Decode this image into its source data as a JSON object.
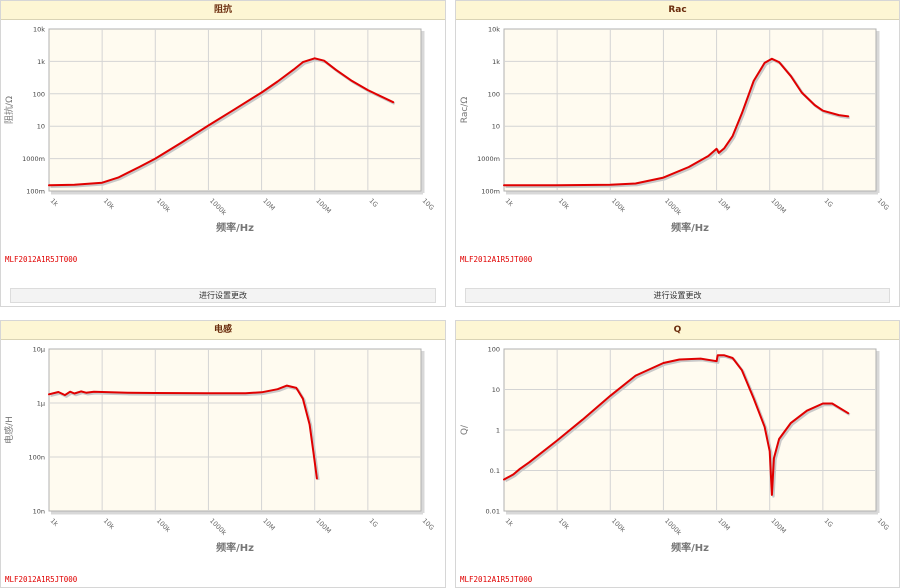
{
  "button_label": "进行设置更改",
  "part_number": "MLF2012A1R5JT000",
  "panels": [
    {
      "title": "阻抗"
    },
    {
      "title": "Rac"
    },
    {
      "title": "电感"
    },
    {
      "title": "Q"
    }
  ],
  "chart_data": [
    {
      "type": "line",
      "title": "阻抗",
      "xlabel": "频率/Hz",
      "ylabel": "阻抗/Ω",
      "xscale": "log",
      "yscale": "log",
      "xlim": [
        1000,
        10000000000
      ],
      "ylim": [
        0.1,
        10000
      ],
      "xticks": [
        "1k",
        "10k",
        "100k",
        "1000k",
        "10M",
        "100M",
        "1G",
        "10G"
      ],
      "yticks": [
        "100m",
        "1000m",
        "10",
        "100",
        "1k",
        "10k"
      ],
      "grid": true,
      "series": [
        {
          "color": "#e00000",
          "points": [
            [
              1000,
              0.15
            ],
            [
              3000,
              0.155
            ],
            [
              10000,
              0.18
            ],
            [
              20000,
              0.26
            ],
            [
              50000,
              0.55
            ],
            [
              100000,
              1.0
            ],
            [
              300000,
              3.0
            ],
            [
              1000000,
              10.5
            ],
            [
              3000000,
              32
            ],
            [
              10000000,
              110
            ],
            [
              20000000,
              240
            ],
            [
              40000000,
              560
            ],
            [
              60000000,
              950
            ],
            [
              100000000,
              1250
            ],
            [
              150000000,
              1050
            ],
            [
              250000000,
              550
            ],
            [
              500000000,
              250
            ],
            [
              1000000000,
              130
            ],
            [
              3000000000,
              55
            ]
          ]
        }
      ]
    },
    {
      "type": "line",
      "title": "Rac",
      "xlabel": "频率/Hz",
      "ylabel": "Rac/Ω",
      "xscale": "log",
      "yscale": "log",
      "xlim": [
        1000,
        10000000000
      ],
      "ylim": [
        0.1,
        10000
      ],
      "xticks": [
        "1k",
        "10k",
        "100k",
        "1000k",
        "10M",
        "100M",
        "1G",
        "10G"
      ],
      "yticks": [
        "100m",
        "1000m",
        "10",
        "100",
        "1k",
        "10k"
      ],
      "grid": true,
      "series": [
        {
          "color": "#e00000",
          "points": [
            [
              1000,
              0.15
            ],
            [
              10000,
              0.15
            ],
            [
              100000,
              0.155
            ],
            [
              300000,
              0.17
            ],
            [
              1000000,
              0.26
            ],
            [
              3000000,
              0.55
            ],
            [
              7000000,
              1.2
            ],
            [
              10000000,
              2.0
            ],
            [
              11000000,
              1.5
            ],
            [
              14000000,
              2.1
            ],
            [
              20000000,
              5
            ],
            [
              30000000,
              25
            ],
            [
              50000000,
              250
            ],
            [
              80000000,
              900
            ],
            [
              110000000,
              1200
            ],
            [
              150000000,
              950
            ],
            [
              250000000,
              350
            ],
            [
              400000000,
              110
            ],
            [
              700000000,
              45
            ],
            [
              1000000000,
              30
            ],
            [
              2000000000,
              22
            ],
            [
              3000000000,
              20
            ]
          ]
        }
      ]
    },
    {
      "type": "line",
      "title": "电感",
      "xlabel": "频率/Hz",
      "ylabel": "电感/H",
      "xscale": "log",
      "yscale": "log",
      "xlim": [
        1000,
        10000000000
      ],
      "ylim": [
        1e-08,
        1e-05
      ],
      "xticks": [
        "1k",
        "10k",
        "100k",
        "1000k",
        "10M",
        "100M",
        "1G",
        "10G"
      ],
      "yticks": [
        "10n",
        "100n",
        "1μ",
        "10μ"
      ],
      "grid": true,
      "series": [
        {
          "color": "#e00000",
          "points": [
            [
              1000,
              1.45e-06
            ],
            [
              1500,
              1.6e-06
            ],
            [
              2000,
              1.4e-06
            ],
            [
              2500,
              1.62e-06
            ],
            [
              3000,
              1.5e-06
            ],
            [
              4000,
              1.64e-06
            ],
            [
              5000,
              1.55e-06
            ],
            [
              7000,
              1.62e-06
            ],
            [
              10000,
              1.6e-06
            ],
            [
              30000,
              1.55e-06
            ],
            [
              100000,
              1.53e-06
            ],
            [
              1000000,
              1.52e-06
            ],
            [
              5000000,
              1.52e-06
            ],
            [
              10000000,
              1.58e-06
            ],
            [
              20000000,
              1.8e-06
            ],
            [
              30000000,
              2.1e-06
            ],
            [
              45000000,
              1.9e-06
            ],
            [
              60000000,
              1.2e-06
            ],
            [
              80000000,
              4e-07
            ],
            [
              95000000,
              1.2e-07
            ],
            [
              110000000,
              4e-08
            ]
          ]
        }
      ]
    },
    {
      "type": "line",
      "title": "Q",
      "xlabel": "频率/Hz",
      "ylabel": "Q/",
      "xscale": "log",
      "yscale": "log",
      "xlim": [
        1000,
        10000000000
      ],
      "ylim": [
        0.01,
        100
      ],
      "xticks": [
        "1k",
        "10k",
        "100k",
        "1000k",
        "10M",
        "100M",
        "1G",
        "10G"
      ],
      "yticks": [
        "0.01",
        "0.1",
        "1",
        "10",
        "100"
      ],
      "grid": true,
      "series": [
        {
          "color": "#e00000",
          "points": [
            [
              1000,
              0.06
            ],
            [
              1500,
              0.08
            ],
            [
              2000,
              0.11
            ],
            [
              3000,
              0.16
            ],
            [
              10000,
              0.55
            ],
            [
              30000,
              1.8
            ],
            [
              100000,
              7
            ],
            [
              300000,
              22
            ],
            [
              1000000,
              45
            ],
            [
              2000000,
              55
            ],
            [
              5000000,
              58
            ],
            [
              10000000,
              50
            ],
            [
              10500000,
              70
            ],
            [
              14000000,
              70
            ],
            [
              20000000,
              60
            ],
            [
              30000000,
              30
            ],
            [
              50000000,
              6
            ],
            [
              80000000,
              1.2
            ],
            [
              100000000,
              0.3
            ],
            [
              110000000,
              0.025
            ],
            [
              120000000,
              0.2
            ],
            [
              150000000,
              0.6
            ],
            [
              250000000,
              1.5
            ],
            [
              500000000,
              3
            ],
            [
              1000000000,
              4.5
            ],
            [
              1500000000,
              4.5
            ],
            [
              3000000000,
              2.6
            ]
          ]
        }
      ]
    }
  ]
}
